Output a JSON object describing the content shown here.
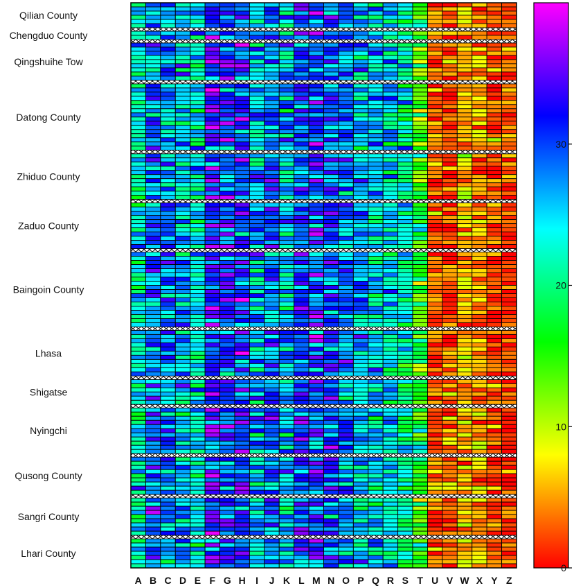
{
  "chart_data": {
    "type": "heatmap",
    "title": "",
    "xlabel": "",
    "ylabel": "",
    "columns": [
      "A",
      "B",
      "C",
      "D",
      "E",
      "F",
      "G",
      "H",
      "I",
      "J",
      "K",
      "L",
      "M",
      "N",
      "O",
      "P",
      "Q",
      "R",
      "S",
      "T",
      "U",
      "V",
      "W",
      "X",
      "Y",
      "Z"
    ],
    "groups": [
      {
        "name": "Qilian County",
        "rows": 6
      },
      {
        "name": "Chengduo County",
        "rows": 2
      },
      {
        "name": "Qingshuihe Tow",
        "rows": 9
      },
      {
        "name": "Datong County",
        "rows": 16
      },
      {
        "name": "Zhiduo County",
        "rows": 11
      },
      {
        "name": "Zaduo County",
        "rows": 11
      },
      {
        "name": "Baingoin County",
        "rows": 18
      },
      {
        "name": "Lhasa",
        "rows": 11
      },
      {
        "name": "Shigatse",
        "rows": 6
      },
      {
        "name": "Nyingchi",
        "rows": 11
      },
      {
        "name": "Qusong County",
        "rows": 9
      },
      {
        "name": "Sangri County",
        "rows": 9
      },
      {
        "name": "Lhari County",
        "rows": 7
      }
    ],
    "column_mean_values": [
      23,
      28,
      27,
      26,
      24,
      33,
      31,
      30,
      26,
      29,
      26,
      30,
      31,
      30,
      27,
      26,
      25,
      24,
      21,
      15,
      3,
      3,
      6,
      5,
      3,
      2
    ],
    "value_range": [
      0,
      40
    ],
    "colorbar": {
      "ticks": [
        0,
        10,
        20,
        30
      ],
      "labels": [
        "0",
        "10",
        "20",
        "30"
      ],
      "colormap": "hsv: red (0) → yellow → green → cyan → blue → purple → magenta (40)"
    },
    "group_separator_pattern": "hatched"
  }
}
